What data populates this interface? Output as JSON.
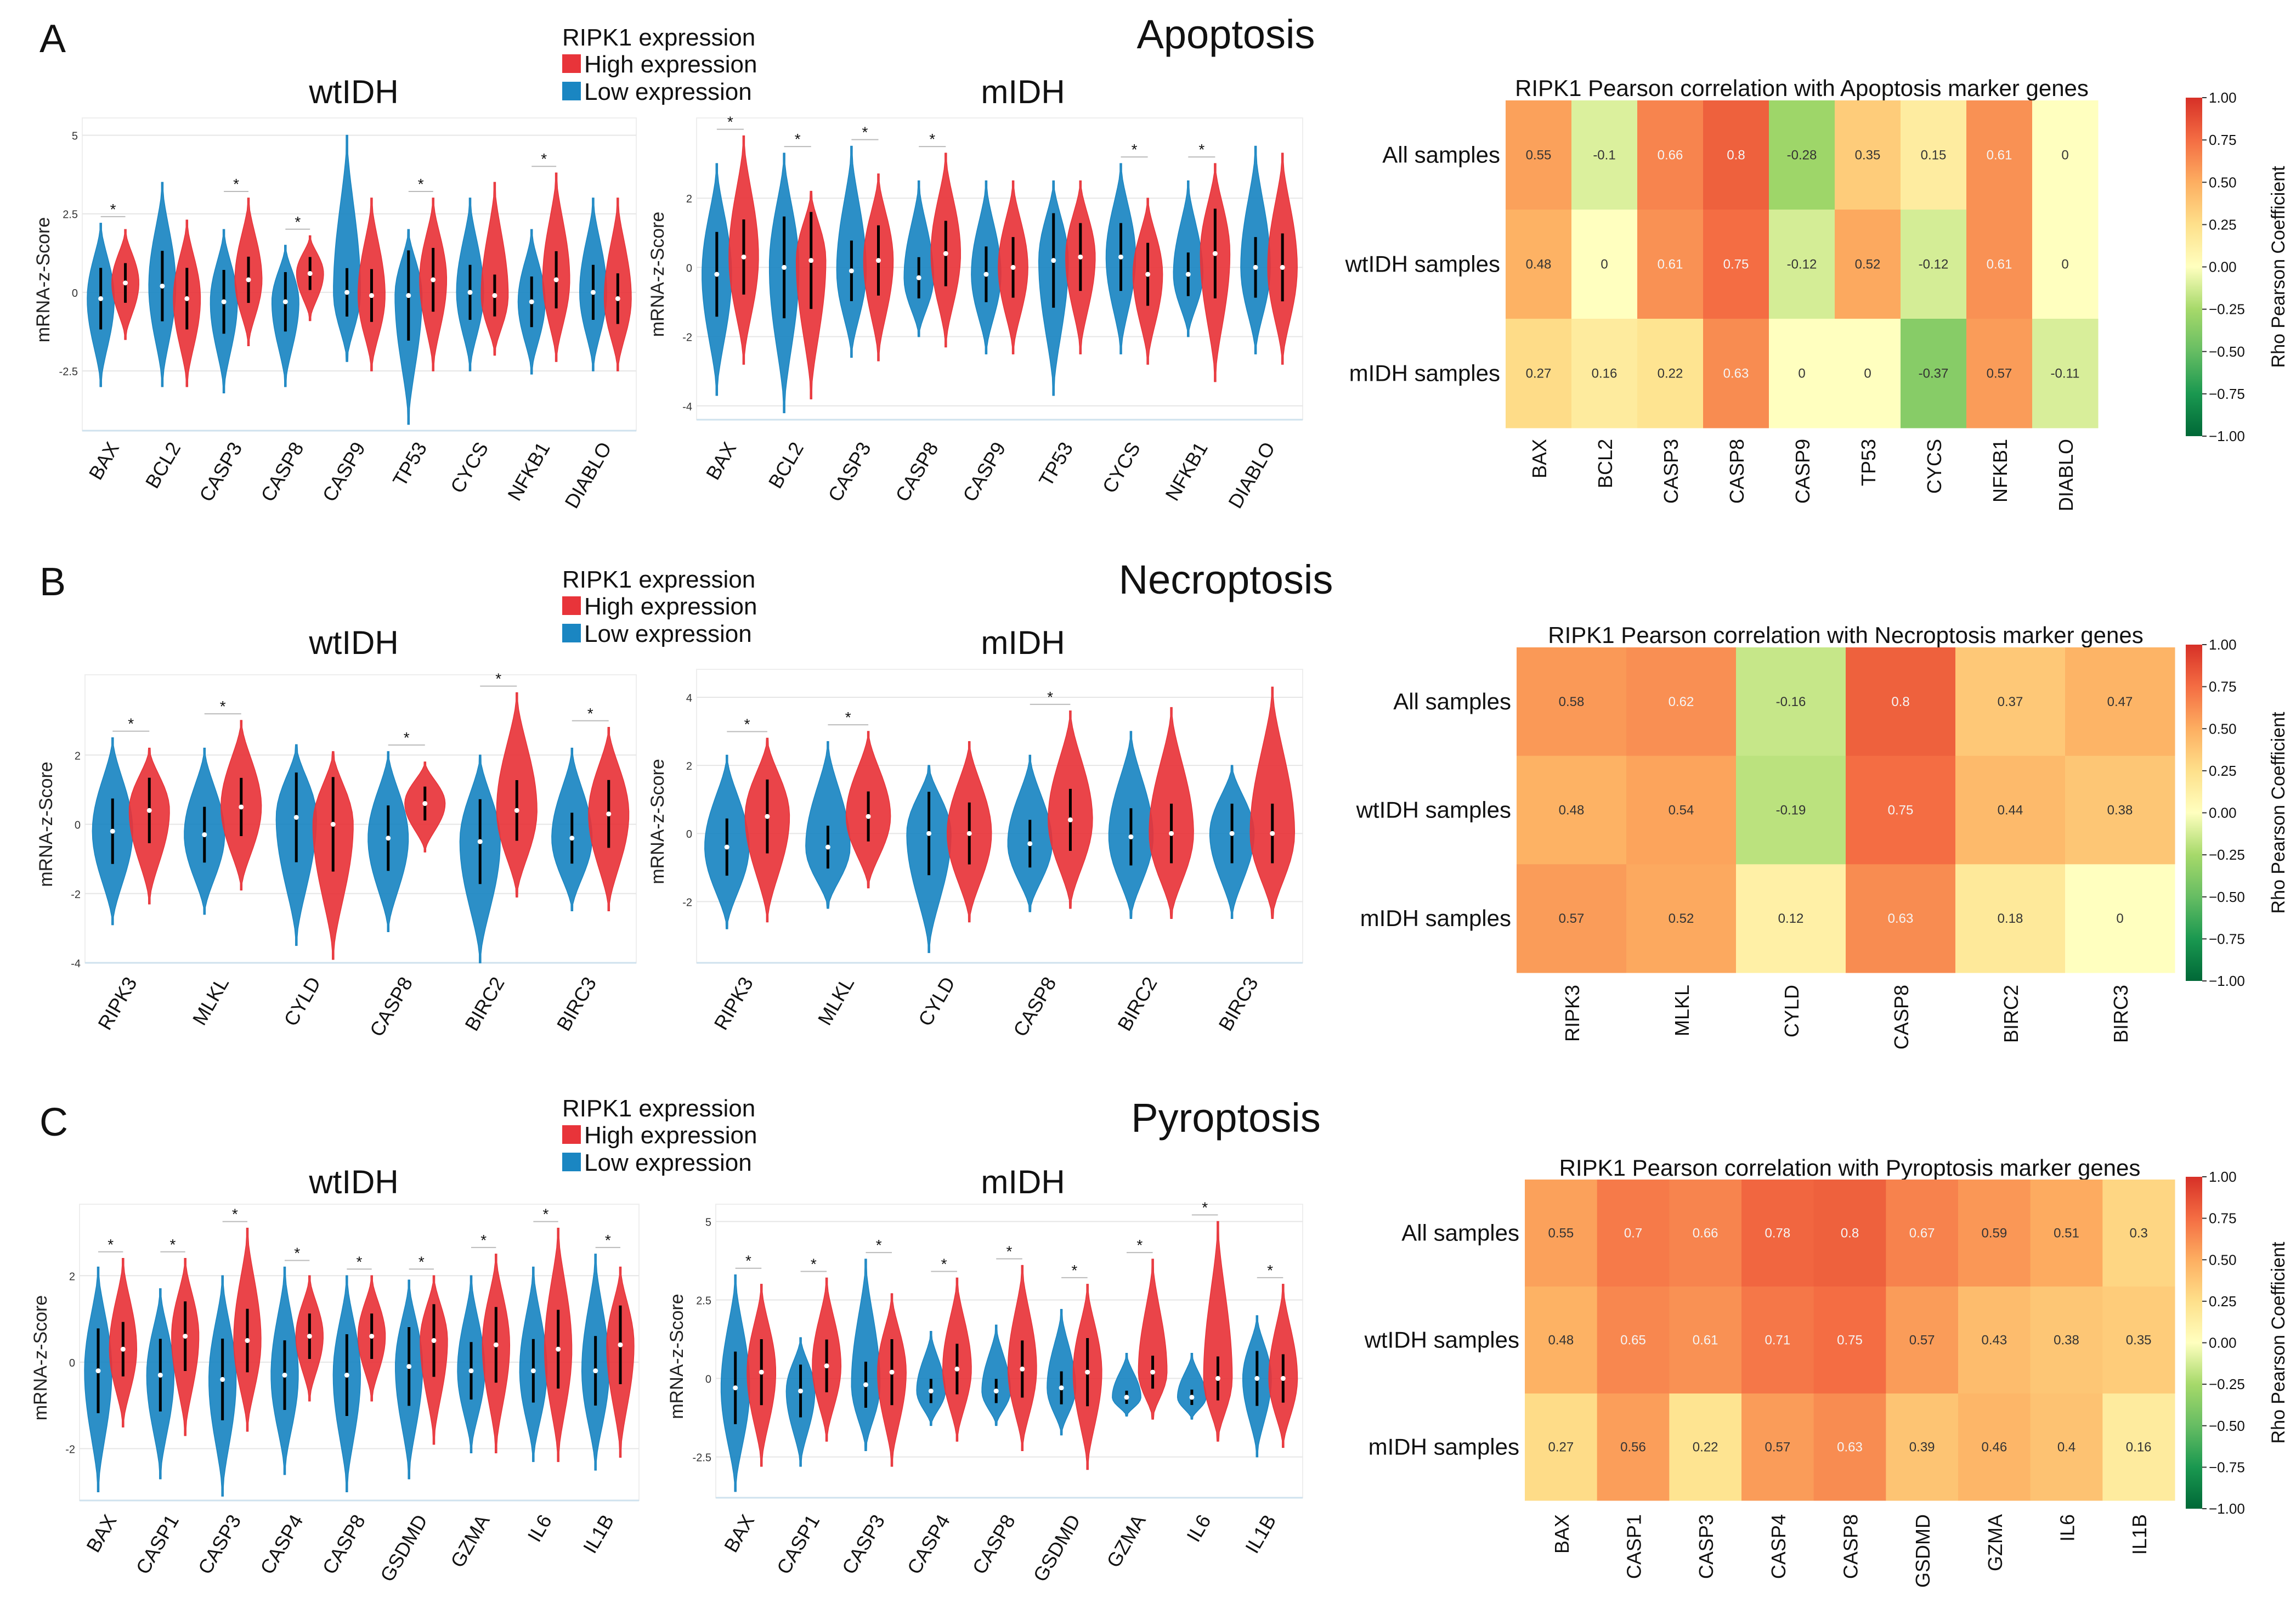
{
  "colors": {
    "high": "#e8343a",
    "low": "#1a86c2",
    "grid": "#e6e6e6",
    "axis": "#cfe2ee",
    "text": "#111111"
  },
  "legend": {
    "title": "RIPK1 expression",
    "high_label": "High expression",
    "low_label": "Low expression"
  },
  "heat_colorbar": {
    "label": "Rho Pearson Coefficient",
    "ticks": [
      "1.00",
      "0.75",
      "0.50",
      "0.25",
      "0.00",
      "−0.25",
      "−0.50",
      "−0.75",
      "−1.00"
    ]
  },
  "panels": [
    {
      "letter": "A",
      "title": "Apoptosis"
    },
    {
      "letter": "B",
      "title": "Necroptosis"
    },
    {
      "letter": "C",
      "title": "Pyroptosis"
    }
  ],
  "chart_data": [
    {
      "type": "violin",
      "panel": "A",
      "title": "wtIDH",
      "ylabel": "mRNA-z-Score",
      "yticks": [
        "5",
        "2.5",
        "0",
        "-2.5"
      ],
      "ytick_values": [
        5,
        2.5,
        0,
        -2.5
      ],
      "ylim": [
        -4.4,
        5.2
      ],
      "categories": [
        "BAX",
        "BCL2",
        "CASP3",
        "CASP8",
        "CASP9",
        "TP53",
        "CYCS",
        "NFKB1",
        "DIABLO"
      ],
      "series": [
        {
          "name": "Low expression",
          "min": [
            -3.0,
            -3.0,
            -3.2,
            -3.0,
            -2.2,
            -4.2,
            -2.5,
            -2.6,
            -2.5
          ],
          "max": [
            2.2,
            3.5,
            2.0,
            1.5,
            5.0,
            2.0,
            3.0,
            2.0,
            3.0
          ],
          "median": [
            -0.2,
            0.2,
            -0.3,
            -0.3,
            0,
            -0.1,
            0,
            -0.3,
            0
          ]
        },
        {
          "name": "High expression",
          "min": [
            -1.5,
            -3.0,
            -1.7,
            -0.9,
            -2.5,
            -2.5,
            -2.0,
            -2.2,
            -2.5
          ],
          "max": [
            2.0,
            2.3,
            3.0,
            1.8,
            3.0,
            3.0,
            3.5,
            3.8,
            3.0
          ],
          "median": [
            0.3,
            -0.2,
            0.4,
            0.6,
            -0.1,
            0.4,
            -0.1,
            0.4,
            -0.2
          ]
        }
      ],
      "significant": [
        true,
        false,
        true,
        true,
        false,
        true,
        false,
        true,
        false
      ]
    },
    {
      "type": "violin",
      "panel": "A",
      "title": "mIDH",
      "ylabel": "mRNA-z-Score",
      "yticks": [
        "2",
        "0",
        "-2",
        "-4"
      ],
      "ytick_values": [
        2,
        0,
        -2,
        -4
      ],
      "ylim": [
        -4.4,
        4.0
      ],
      "categories": [
        "BAX",
        "BCL2",
        "CASP3",
        "CASP8",
        "CASP9",
        "TP53",
        "CYCS",
        "NFKB1",
        "DIABLO"
      ],
      "series": [
        {
          "name": "Low expression",
          "min": [
            -3.7,
            -4.2,
            -2.6,
            -2.0,
            -2.5,
            -3.7,
            -2.5,
            -2.0,
            -2.5
          ],
          "max": [
            3.0,
            3.3,
            3.5,
            2.5,
            2.5,
            2.5,
            3.0,
            2.5,
            3.5
          ],
          "median": [
            -0.2,
            0,
            -0.1,
            -0.3,
            -0.2,
            0.2,
            0.3,
            -0.2,
            0
          ]
        },
        {
          "name": "High expression",
          "min": [
            -2.8,
            -3.8,
            -2.7,
            -2.3,
            -2.5,
            -2.5,
            -2.8,
            -3.3,
            -2.8
          ],
          "max": [
            3.8,
            2.2,
            2.7,
            3.3,
            2.5,
            2.5,
            2.0,
            3.0,
            3.3
          ],
          "median": [
            0.3,
            0.2,
            0.2,
            0.4,
            0,
            0.3,
            -0.2,
            0.4,
            0
          ]
        }
      ],
      "significant": [
        true,
        true,
        true,
        true,
        false,
        false,
        true,
        true,
        false
      ]
    },
    {
      "type": "heatmap",
      "panel": "A",
      "title": "RIPK1 Pearson correlation with Apoptosis marker genes",
      "rows": [
        "All samples",
        "wtIDH samples",
        "mIDH samples"
      ],
      "columns": [
        "BAX",
        "BCL2",
        "CASP3",
        "CASP8",
        "CASP9",
        "TP53",
        "CYCS",
        "NFKB1",
        "DIABLO"
      ],
      "values": [
        [
          "0.55",
          "-0.1",
          "0.66",
          "0.8",
          "-0.28",
          "0.35",
          "0.15",
          "0.61",
          "0"
        ],
        [
          "0.48",
          "0",
          "0.61",
          "0.75",
          "-0.12",
          "0.52",
          "-0.12",
          "0.61",
          "0"
        ],
        [
          "0.27",
          "0.16",
          "0.22",
          "0.63",
          "0",
          "0",
          "-0.37",
          "0.57",
          "-0.11"
        ]
      ],
      "vmin": -1,
      "vmax": 1
    },
    {
      "type": "violin",
      "panel": "B",
      "title": "wtIDH",
      "ylabel": "mRNA-z-Score",
      "yticks": [
        "2",
        "0",
        "-2",
        "-4"
      ],
      "ytick_values": [
        2,
        0,
        -2,
        -4
      ],
      "ylim": [
        -4.0,
        4.0
      ],
      "categories": [
        "RIPK3",
        "MLKL",
        "CYLD",
        "CASP8",
        "BIRC2",
        "BIRC3"
      ],
      "series": [
        {
          "name": "Low expression",
          "min": [
            -2.9,
            -2.6,
            -3.5,
            -3.1,
            -4.0,
            -2.5
          ],
          "max": [
            2.5,
            2.2,
            2.3,
            2.1,
            2.0,
            2.2
          ],
          "median": [
            -0.2,
            -0.3,
            0.2,
            -0.4,
            -0.5,
            -0.4
          ]
        },
        {
          "name": "High expression",
          "min": [
            -2.3,
            -1.9,
            -3.9,
            -0.8,
            -2.1,
            -2.5
          ],
          "max": [
            2.2,
            3.0,
            2.1,
            1.8,
            3.8,
            2.8
          ],
          "median": [
            0.4,
            0.5,
            0,
            0.6,
            0.4,
            0.3
          ]
        }
      ],
      "significant": [
        true,
        true,
        false,
        true,
        true,
        true
      ]
    },
    {
      "type": "violin",
      "panel": "B",
      "title": "mIDH",
      "ylabel": "mRNA-z-Score",
      "yticks": [
        "4",
        "2",
        "0",
        "-2"
      ],
      "ytick_values": [
        4,
        2,
        0,
        -2
      ],
      "ylim": [
        -3.8,
        4.5
      ],
      "categories": [
        "RIPK3",
        "MLKL",
        "CYLD",
        "CASP8",
        "BIRC2",
        "BIRC3"
      ],
      "series": [
        {
          "name": "Low expression",
          "min": [
            -2.8,
            -2.2,
            -3.5,
            -2.3,
            -2.5,
            -2.5
          ],
          "max": [
            2.3,
            2.7,
            2.0,
            2.3,
            3.0,
            2.0
          ],
          "median": [
            -0.4,
            -0.4,
            0,
            -0.3,
            -0.1,
            0
          ]
        },
        {
          "name": "High expression",
          "min": [
            -2.6,
            -1.6,
            -2.6,
            -2.2,
            -2.5,
            -2.5
          ],
          "max": [
            2.8,
            3.0,
            2.7,
            3.6,
            3.7,
            4.3
          ],
          "median": [
            0.5,
            0.5,
            0,
            0.4,
            0,
            0
          ]
        }
      ],
      "significant": [
        true,
        true,
        false,
        true,
        false,
        false
      ]
    },
    {
      "type": "heatmap",
      "panel": "B",
      "title": "RIPK1 Pearson correlation with Necroptosis marker genes",
      "rows": [
        "All samples",
        "wtIDH samples",
        "mIDH samples"
      ],
      "columns": [
        "RIPK3",
        "MLKL",
        "CYLD",
        "CASP8",
        "BIRC2",
        "BIRC3"
      ],
      "values": [
        [
          "0.58",
          "0.62",
          "-0.16",
          "0.8",
          "0.37",
          "0.47"
        ],
        [
          "0.48",
          "0.54",
          "-0.19",
          "0.75",
          "0.44",
          "0.38"
        ],
        [
          "0.57",
          "0.52",
          "0.12",
          "0.63",
          "0.18",
          "0"
        ]
      ],
      "vmin": -1,
      "vmax": 1
    },
    {
      "type": "violin",
      "panel": "C",
      "title": "wtIDH",
      "ylabel": "mRNA-z-Score",
      "yticks": [
        "2",
        "0",
        "-2"
      ],
      "ytick_values": [
        2,
        0,
        -2
      ],
      "ylim": [
        -3.2,
        3.4
      ],
      "categories": [
        "BAX",
        "CASP1",
        "CASP3",
        "CASP4",
        "CASP8",
        "GSDMD",
        "GZMA",
        "IL6",
        "IL1B"
      ],
      "series": [
        {
          "name": "Low expression",
          "min": [
            -3.0,
            -2.7,
            -3.1,
            -2.6,
            -3.0,
            -2.7,
            -2.1,
            -2.3,
            -2.5
          ],
          "max": [
            2.2,
            1.7,
            2.0,
            2.2,
            2.0,
            1.9,
            2.0,
            2.2,
            2.5
          ],
          "median": [
            -0.2,
            -0.3,
            -0.4,
            -0.3,
            -0.3,
            -0.1,
            -0.2,
            -0.2,
            -0.2
          ]
        },
        {
          "name": "High expression",
          "min": [
            -1.5,
            -1.7,
            -1.6,
            -0.9,
            -0.9,
            -1.9,
            -2.1,
            -2.3,
            -2.2
          ],
          "max": [
            2.4,
            2.4,
            3.1,
            2.0,
            2.0,
            2.0,
            2.5,
            3.1,
            2.2
          ],
          "median": [
            0.3,
            0.6,
            0.5,
            0.6,
            0.6,
            0.5,
            0.4,
            0.3,
            0.4
          ]
        }
      ],
      "significant": [
        true,
        true,
        true,
        true,
        true,
        true,
        true,
        true,
        true
      ]
    },
    {
      "type": "violin",
      "panel": "C",
      "title": "mIDH",
      "ylabel": "mRNA-z-Score",
      "yticks": [
        "5",
        "2.5",
        "0",
        "-2.5"
      ],
      "ytick_values": [
        5,
        2.5,
        0,
        -2.5
      ],
      "ylim": [
        -3.8,
        5.2
      ],
      "categories": [
        "BAX",
        "CASP1",
        "CASP3",
        "CASP4",
        "CASP8",
        "GSDMD",
        "GZMA",
        "IL6",
        "IL1B"
      ],
      "series": [
        {
          "name": "Low expression",
          "min": [
            -3.6,
            -2.8,
            -2.3,
            -1.5,
            -1.5,
            -1.8,
            -1.2,
            -1.3,
            -2.5
          ],
          "max": [
            3.3,
            1.3,
            3.8,
            1.5,
            1.7,
            2.2,
            0.8,
            0.8,
            2.0
          ],
          "median": [
            -0.3,
            -0.4,
            -0.2,
            -0.4,
            -0.4,
            -0.3,
            -0.6,
            -0.6,
            0
          ]
        },
        {
          "name": "High expression",
          "min": [
            -2.8,
            -2.0,
            -2.8,
            -2.0,
            -2.3,
            -2.9,
            -1.3,
            -2.0,
            -2.2
          ],
          "max": [
            3.0,
            3.2,
            2.7,
            3.2,
            3.6,
            3.0,
            3.8,
            5.0,
            3.0
          ],
          "median": [
            0.2,
            0.4,
            0.2,
            0.3,
            0.3,
            0.2,
            0.2,
            0,
            0
          ]
        }
      ],
      "significant": [
        true,
        true,
        true,
        true,
        true,
        true,
        true,
        true,
        true
      ]
    },
    {
      "type": "heatmap",
      "panel": "C",
      "title": "RIPK1 Pearson correlation with Pyroptosis marker genes",
      "rows": [
        "All samples",
        "wtIDH samples",
        "mIDH samples"
      ],
      "columns": [
        "BAX",
        "CASP1",
        "CASP3",
        "CASP4",
        "CASP8",
        "GSDMD",
        "GZMA",
        "IL6",
        "IL1B"
      ],
      "values": [
        [
          "0.55",
          "0.7",
          "0.66",
          "0.78",
          "0.8",
          "0.67",
          "0.59",
          "0.51",
          "0.3"
        ],
        [
          "0.48",
          "0.65",
          "0.61",
          "0.71",
          "0.75",
          "0.57",
          "0.43",
          "0.38",
          "0.35"
        ],
        [
          "0.27",
          "0.56",
          "0.22",
          "0.57",
          "0.63",
          "0.39",
          "0.46",
          "0.4",
          "0.16"
        ]
      ],
      "vmin": -1,
      "vmax": 1
    }
  ]
}
